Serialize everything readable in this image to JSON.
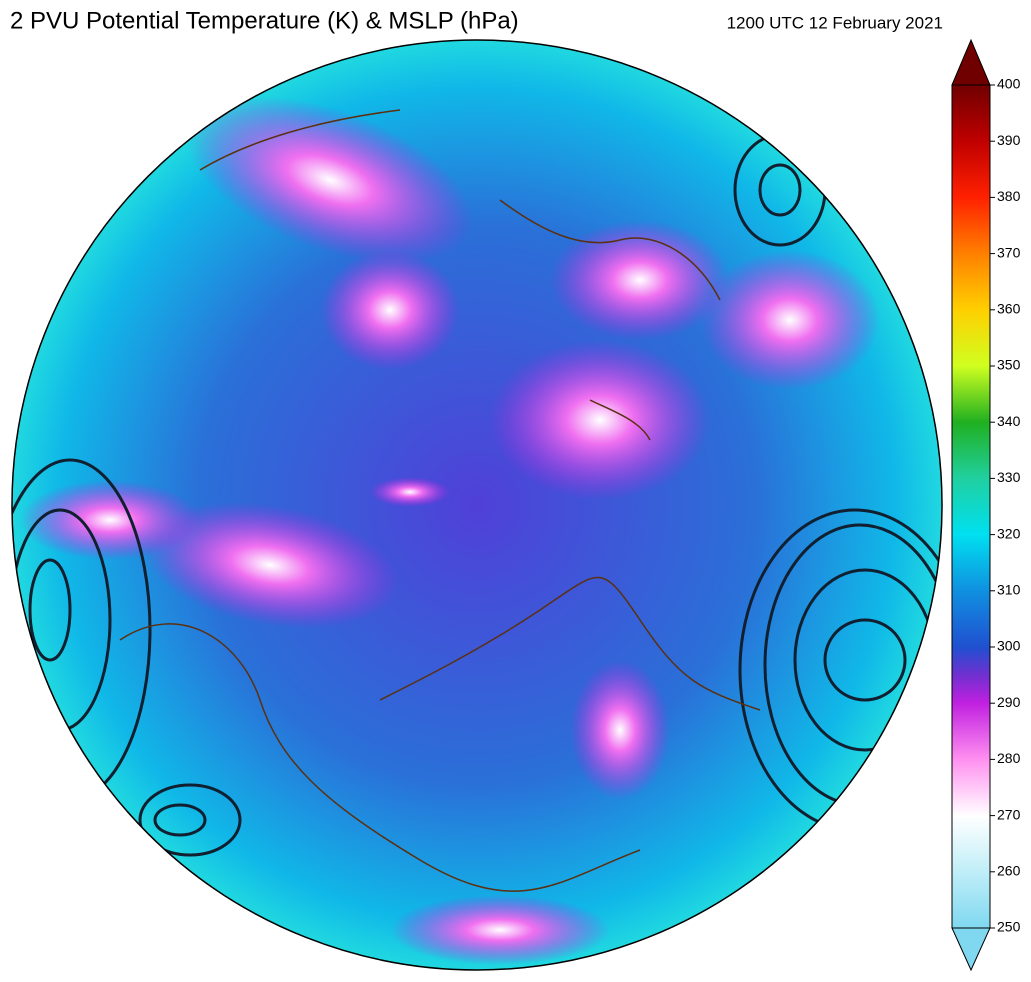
{
  "header": {
    "title": "2 PVU Potential Temperature (K) & MSLP (hPa)",
    "valid_time": "1200 UTC 12 February 2021"
  },
  "colorbar": {
    "lim": [
      250,
      400
    ],
    "ticks": [
      250,
      260,
      270,
      280,
      290,
      300,
      310,
      320,
      330,
      340,
      350,
      360,
      370,
      380,
      390,
      400
    ]
  }
}
